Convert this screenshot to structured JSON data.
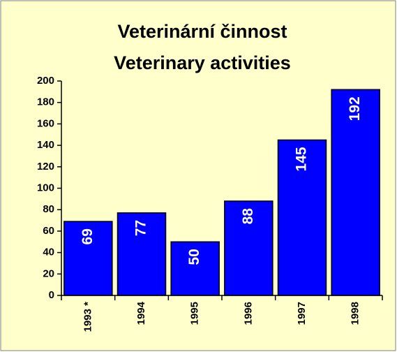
{
  "chart_data": {
    "type": "bar",
    "title": "Veterinární činnost",
    "subtitle": "Veterinary activities",
    "categories": [
      "1993 *",
      "1994",
      "1995",
      "1996",
      "1997",
      "1998"
    ],
    "values": [
      69,
      77,
      50,
      88,
      145,
      192
    ],
    "color": "#0000ff",
    "ylim": [
      0,
      200
    ],
    "yticks": [
      0,
      20,
      40,
      60,
      80,
      100,
      120,
      140,
      160,
      180,
      200
    ],
    "grid": false
  }
}
